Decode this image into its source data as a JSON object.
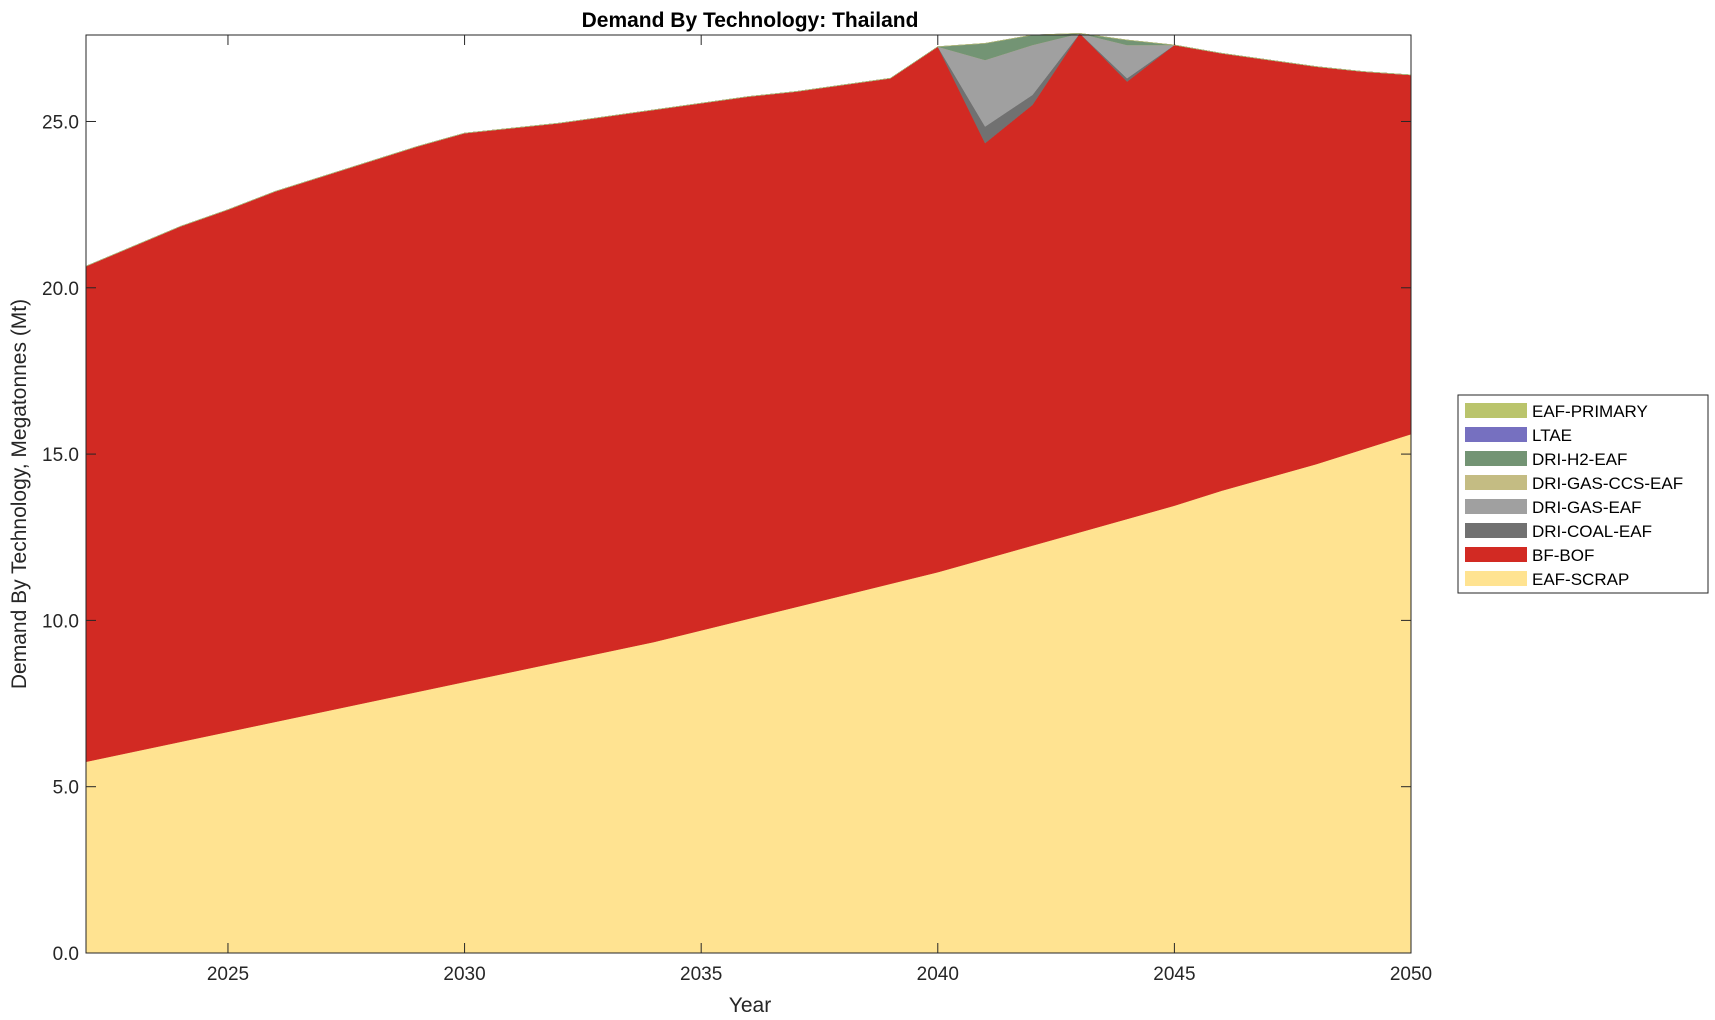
{
  "chart_data": {
    "type": "area",
    "stacked": true,
    "title": "Demand By Technology: Thailand",
    "xlabel": "Year",
    "ylabel": "Demand By Technology, Megatonnes (Mt)",
    "xlim": [
      2022,
      2050
    ],
    "ylim": [
      0,
      27.6
    ],
    "xticks": [
      2025,
      2030,
      2035,
      2040,
      2045,
      2050
    ],
    "yticks": [
      "0.0",
      "5.0",
      "10.0",
      "15.0",
      "20.0",
      "25.0"
    ],
    "grid": false,
    "legend_position": "right",
    "x": [
      2022,
      2023,
      2024,
      2025,
      2026,
      2027,
      2028,
      2029,
      2030,
      2031,
      2032,
      2033,
      2034,
      2035,
      2036,
      2037,
      2038,
      2039,
      2040,
      2041,
      2042,
      2043,
      2044,
      2045,
      2046,
      2047,
      2048,
      2049,
      2050
    ],
    "series": [
      {
        "name": "EAF-SCRAP",
        "color": "#FFE391",
        "values": [
          5.75,
          6.05,
          6.35,
          6.65,
          6.95,
          7.25,
          7.55,
          7.85,
          8.15,
          8.45,
          8.75,
          9.05,
          9.35,
          9.7,
          10.05,
          10.4,
          10.75,
          11.1,
          11.45,
          11.85,
          12.25,
          12.65,
          13.05,
          13.45,
          13.9,
          14.3,
          14.7,
          15.15,
          15.6
        ]
      },
      {
        "name": "BF-BOF",
        "color": "#D22A23",
        "values": [
          14.9,
          15.2,
          15.5,
          15.7,
          15.95,
          16.1,
          16.25,
          16.4,
          16.5,
          16.35,
          16.2,
          16.1,
          16.0,
          15.85,
          15.7,
          15.5,
          15.35,
          15.2,
          15.8,
          12.5,
          13.25,
          15.0,
          13.15,
          13.85,
          13.15,
          12.55,
          11.95,
          11.35,
          10.8
        ]
      },
      {
        "name": "DRI-COAL-EAF",
        "color": "#717171",
        "values": [
          0,
          0,
          0,
          0,
          0,
          0,
          0,
          0,
          0,
          0,
          0,
          0,
          0,
          0,
          0,
          0,
          0,
          0,
          0,
          0.5,
          0.3,
          0,
          0.1,
          0,
          0,
          0,
          0,
          0,
          0
        ]
      },
      {
        "name": "DRI-GAS-EAF",
        "color": "#A0A0A0",
        "values": [
          0,
          0,
          0,
          0,
          0,
          0,
          0,
          0,
          0,
          0,
          0,
          0,
          0,
          0,
          0,
          0,
          0,
          0,
          0,
          2.0,
          1.5,
          0,
          1.0,
          0,
          0,
          0,
          0,
          0,
          0
        ]
      },
      {
        "name": "DRI-GAS-CCS-EAF",
        "color": "#C4BC83",
        "values": [
          0,
          0,
          0,
          0,
          0,
          0,
          0,
          0,
          0,
          0,
          0,
          0,
          0,
          0,
          0,
          0,
          0,
          0,
          0,
          0,
          0,
          0,
          0,
          0,
          0,
          0,
          0,
          0,
          0
        ]
      },
      {
        "name": "DRI-H2-EAF",
        "color": "#739474",
        "values": [
          0,
          0,
          0,
          0,
          0,
          0,
          0,
          0,
          0,
          0,
          0,
          0,
          0,
          0,
          0,
          0,
          0,
          0,
          0,
          0.5,
          0.3,
          0,
          0.15,
          0,
          0,
          0,
          0,
          0,
          0
        ]
      },
      {
        "name": "LTAE",
        "color": "#7670C0",
        "values": [
          0,
          0,
          0,
          0,
          0,
          0,
          0,
          0,
          0,
          0,
          0,
          0,
          0,
          0,
          0,
          0,
          0,
          0,
          0,
          0,
          0,
          0,
          0,
          0,
          0,
          0,
          0,
          0,
          0
        ]
      },
      {
        "name": "EAF-PRIMARY",
        "color": "#BAC46C",
        "values": [
          0,
          0,
          0,
          0,
          0,
          0,
          0,
          0,
          0,
          0,
          0,
          0,
          0,
          0,
          0,
          0,
          0,
          0,
          0,
          0,
          0,
          0,
          0,
          0,
          0,
          0,
          0,
          0,
          0
        ]
      }
    ],
    "legend_order": [
      "EAF-PRIMARY",
      "LTAE",
      "DRI-H2-EAF",
      "DRI-GAS-CCS-EAF",
      "DRI-GAS-EAF",
      "DRI-COAL-EAF",
      "BF-BOF",
      "EAF-SCRAP"
    ]
  }
}
